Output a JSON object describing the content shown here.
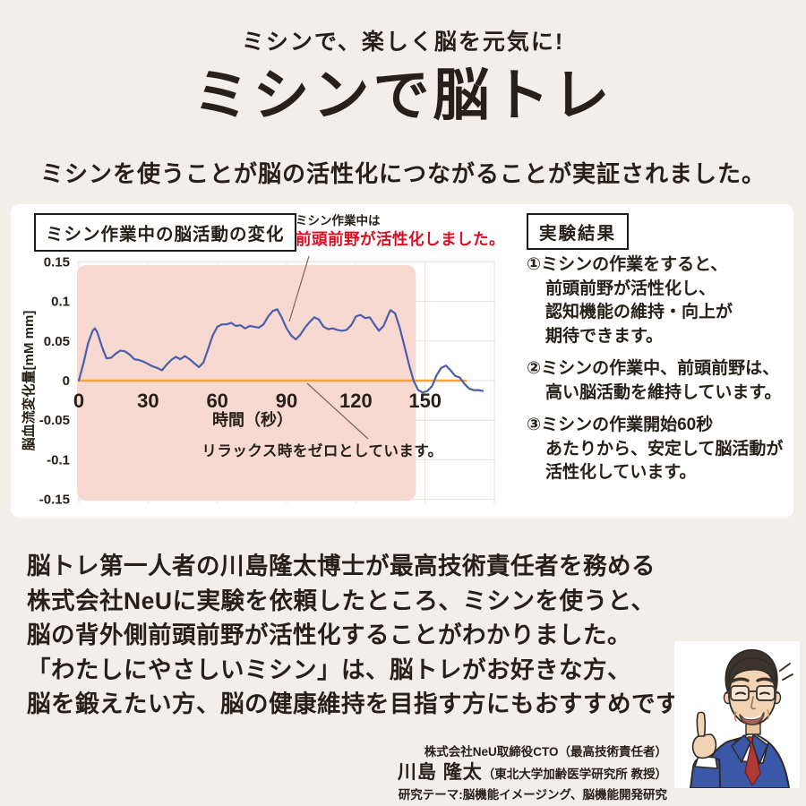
{
  "colors": {
    "background": "#f2efe8",
    "panel": "#ffffff",
    "accent_red": "#dc0c20",
    "line_blue": "#4a5ea9",
    "zero_orange": "#f2a53e",
    "shade_pink": "#f7d9d2",
    "text": "#262019",
    "grid": "#e4e1d8"
  },
  "header": {
    "tagline": "ミシンで、楽しく脳を元気に!",
    "title": "ミシンで脳トレ",
    "subtitle": "ミシンを使うことが脳の活性化につながることが実証されました。"
  },
  "chart_data": {
    "type": "line",
    "title": "ミシン作業中の脳活動の変化",
    "annotation": {
      "line1": "ミシン作業中は",
      "line2": "前頭前野が活性化しました。",
      "color": "#dc0c20"
    },
    "note": "リラックス時をゼロとしています。",
    "xlabel": "時間（秒）",
    "ylabel": "脳血流変化量[mM mm]",
    "xlim": [
      0,
      180
    ],
    "ylim": [
      -0.15,
      0.15
    ],
    "xticks": [
      0,
      30,
      60,
      90,
      120,
      150
    ],
    "yticks": [
      0.15,
      0.1,
      0.05,
      0,
      -0.05,
      -0.1,
      -0.15
    ],
    "ytick_labels": [
      "0.15",
      "0.1",
      "0.05",
      "0",
      "-0.05",
      "-0.1",
      "-0.15"
    ],
    "grid": true,
    "legend": "none",
    "shaded_region": {
      "x0": 0,
      "x1": 146,
      "color": "#f7d9d2"
    },
    "zero_line": {
      "x0": 0,
      "x1": 168,
      "color": "#f2a53e"
    },
    "series": [
      {
        "name": "脳血流変化量",
        "color": "#4a5ea9",
        "points": [
          [
            0,
            0
          ],
          [
            2,
            0.022
          ],
          [
            4,
            0.047
          ],
          [
            6,
            0.063
          ],
          [
            7,
            0.066
          ],
          [
            8,
            0.061
          ],
          [
            10,
            0.043
          ],
          [
            12,
            0.028
          ],
          [
            14,
            0.029
          ],
          [
            16,
            0.034
          ],
          [
            18,
            0.038
          ],
          [
            20,
            0.037
          ],
          [
            22,
            0.033
          ],
          [
            24,
            0.027
          ],
          [
            26,
            0.026
          ],
          [
            28,
            0.024
          ],
          [
            30,
            0.021
          ],
          [
            32,
            0.018
          ],
          [
            34,
            0.016
          ],
          [
            36,
            0.013
          ],
          [
            38,
            0.02
          ],
          [
            40,
            0.026
          ],
          [
            42,
            0.03
          ],
          [
            44,
            0.027
          ],
          [
            46,
            0.031
          ],
          [
            48,
            0.027
          ],
          [
            50,
            0.022
          ],
          [
            52,
            0.017
          ],
          [
            54,
            0.023
          ],
          [
            56,
            0.04
          ],
          [
            58,
            0.057
          ],
          [
            60,
            0.068
          ],
          [
            62,
            0.071
          ],
          [
            64,
            0.071
          ],
          [
            66,
            0.073
          ],
          [
            68,
            0.069
          ],
          [
            70,
            0.07
          ],
          [
            72,
            0.066
          ],
          [
            74,
            0.069
          ],
          [
            76,
            0.068
          ],
          [
            78,
            0.067
          ],
          [
            80,
            0.071
          ],
          [
            82,
            0.081
          ],
          [
            84,
            0.088
          ],
          [
            86,
            0.09
          ],
          [
            88,
            0.079
          ],
          [
            90,
            0.066
          ],
          [
            92,
            0.057
          ],
          [
            94,
            0.052
          ],
          [
            96,
            0.058
          ],
          [
            98,
            0.067
          ],
          [
            100,
            0.074
          ],
          [
            102,
            0.08
          ],
          [
            104,
            0.077
          ],
          [
            106,
            0.068
          ],
          [
            108,
            0.065
          ],
          [
            110,
            0.066
          ],
          [
            112,
            0.064
          ],
          [
            114,
            0.063
          ],
          [
            116,
            0.064
          ],
          [
            118,
            0.07
          ],
          [
            120,
            0.081
          ],
          [
            122,
            0.083
          ],
          [
            124,
            0.079
          ],
          [
            126,
            0.08
          ],
          [
            128,
            0.071
          ],
          [
            130,
            0.063
          ],
          [
            132,
            0.069
          ],
          [
            134,
            0.083
          ],
          [
            135,
            0.089
          ],
          [
            137,
            0.085
          ],
          [
            139,
            0.067
          ],
          [
            141,
            0.044
          ],
          [
            143,
            0.02
          ],
          [
            145,
            0.0
          ],
          [
            147,
            -0.012
          ],
          [
            149,
            -0.015
          ],
          [
            151,
            -0.013
          ],
          [
            153,
            -0.007
          ],
          [
            155,
            0.007
          ],
          [
            157,
            0.016
          ],
          [
            159,
            0.019
          ],
          [
            161,
            0.013
          ],
          [
            163,
            0.006
          ],
          [
            165,
            0.004
          ],
          [
            167,
            -0.004
          ],
          [
            169,
            -0.01
          ],
          [
            171,
            -0.012
          ],
          [
            173,
            -0.012
          ],
          [
            175,
            -0.013
          ]
        ]
      }
    ]
  },
  "results": {
    "heading": "実験結果",
    "items": [
      {
        "text": "①ミシンの作業をすると、\n前頭前野が活性化し、\n認知機能の維持・向上が\n期待できます。"
      },
      {
        "text": "②ミシンの作業中、前頭前野は、\n高い脳活動を維持しています。"
      },
      {
        "text": "③ミシンの作業開始60秒\nあたりから、安定して脳活動が\n活性化しています。"
      }
    ]
  },
  "footer": {
    "paragraph": "脳トレ第一人者の川島隆太博士が最高技術責任者を務める\n株式会社NeUに実験を依頼したところ、ミシンを使うと、\n脳の背外側前頭前野が活性化することがわかりました。\n「わたしにやさしいミシン」は、脳トレがお好きな方、\n脳を鍛えたい方、脳の健康維持を目指す方にもおすすめです。",
    "credentials": {
      "line1": "株式会社NeU取締役CTO（最高技術責任者）",
      "name": "川島 隆太",
      "name_suffix": "（東北大学加齢医学研究所 教授）",
      "line3": "研究テーマ:脳機能イメージング、脳機能開発研究"
    }
  }
}
